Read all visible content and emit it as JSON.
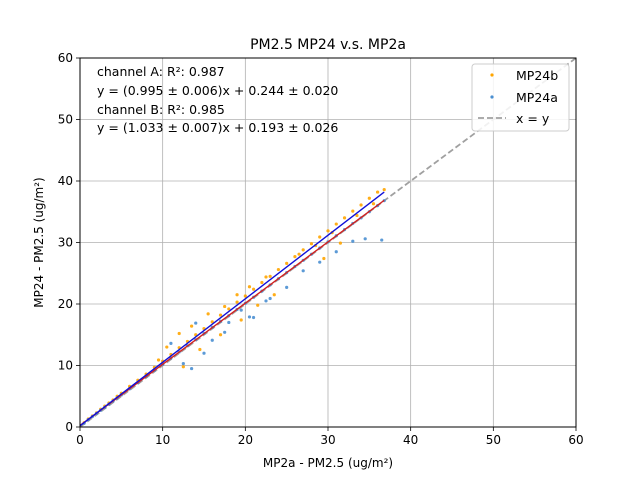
{
  "chart_data": {
    "type": "scatter",
    "title": "PM2.5 MP24 v.s. MP2a",
    "xlabel": "MP2a - PM2.5 (ug/m²)",
    "ylabel": "MP24 - PM2.5 (ug/m²)",
    "xlim": [
      0,
      60
    ],
    "ylim": [
      0,
      60
    ],
    "xticks": [
      "0",
      "10",
      "20",
      "30",
      "40",
      "50",
      "60"
    ],
    "yticks": [
      "0",
      "10",
      "20",
      "30",
      "40",
      "50",
      "60"
    ],
    "grid": true,
    "legend_position": "top-right",
    "annotations": [
      "channel A: R²: 0.987",
      "y = (0.995 ± 0.006)x + 0.244 ± 0.020",
      "channel B: R²: 0.985",
      "y = (1.033 ± 0.007)x + 0.193 ± 0.026"
    ],
    "series": [
      {
        "name": "MP24b",
        "color": "#ffa500",
        "x": [
          0.5,
          1.0,
          1.5,
          2.0,
          2.5,
          3.0,
          3.5,
          4.0,
          4.5,
          5.0,
          6.0,
          7.0,
          8.0,
          9.0,
          10.0,
          11.0,
          12.0,
          13.0,
          14.0,
          15.0,
          16.0,
          17.0,
          18.0,
          19.0,
          20.0,
          21.0,
          22.0,
          23.0,
          24.0,
          25.0,
          26.0,
          27.0,
          28.0,
          29.0,
          30.0,
          31.0,
          32.0,
          33.0,
          34.0,
          35.0,
          36.0,
          36.8,
          10.5,
          12.0,
          13.5,
          15.5,
          17.5,
          19.0,
          20.5,
          22.5,
          26.5,
          28.5,
          30.5,
          33.5,
          35.5,
          9.5,
          12.5,
          14.5,
          17.0,
          19.5,
          21.5,
          23.5,
          29.5,
          31.5
        ],
        "y": [
          0.7,
          1.3,
          1.8,
          2.3,
          2.9,
          3.4,
          3.9,
          4.4,
          5.0,
          5.5,
          6.6,
          7.6,
          8.6,
          9.7,
          10.7,
          11.8,
          12.9,
          13.9,
          15.0,
          16.0,
          17.1,
          18.2,
          19.2,
          20.3,
          21.3,
          22.4,
          23.5,
          24.5,
          25.6,
          26.6,
          27.7,
          28.8,
          29.8,
          30.9,
          31.9,
          33.0,
          34.0,
          35.1,
          36.1,
          37.2,
          38.2,
          38.6,
          13.0,
          15.2,
          16.4,
          18.4,
          19.6,
          21.5,
          22.8,
          24.4,
          28.1,
          29.5,
          31.6,
          34.4,
          36.3,
          10.9,
          9.8,
          12.6,
          15.0,
          17.4,
          19.8,
          21.5,
          27.4,
          29.9
        ]
      },
      {
        "name": "MP24a",
        "color": "#4a8fd1",
        "x": [
          0.5,
          1.0,
          1.5,
          2.0,
          2.5,
          3.0,
          3.5,
          4.0,
          4.5,
          5.0,
          6.0,
          7.0,
          8.0,
          9.0,
          10.0,
          11.0,
          12.0,
          13.0,
          14.0,
          15.0,
          16.0,
          17.0,
          18.0,
          19.0,
          20.0,
          21.0,
          22.0,
          23.0,
          24.0,
          25.0,
          26.0,
          27.0,
          28.0,
          29.0,
          30.0,
          31.0,
          32.0,
          33.0,
          34.0,
          35.0,
          36.0,
          36.8,
          11.0,
          12.5,
          14.0,
          16.0,
          18.0,
          19.5,
          21.0,
          23.0,
          25.0,
          27.0,
          29.0,
          31.0,
          33.0,
          34.5,
          36.5,
          13.5,
          15.0,
          17.5,
          20.5,
          22.5
        ],
        "y": [
          0.6,
          1.2,
          1.7,
          2.2,
          2.7,
          3.2,
          3.7,
          4.2,
          4.7,
          5.2,
          6.2,
          7.2,
          8.2,
          9.2,
          10.2,
          11.2,
          12.2,
          13.2,
          14.2,
          15.2,
          16.2,
          17.2,
          18.1,
          19.1,
          20.1,
          21.1,
          22.1,
          23.1,
          24.1,
          25.1,
          26.1,
          27.1,
          28.1,
          29.1,
          30.1,
          31.1,
          32.1,
          33.1,
          34.0,
          35.0,
          36.0,
          36.8,
          13.6,
          10.3,
          16.9,
          14.1,
          17.0,
          19.0,
          17.8,
          20.9,
          22.7,
          25.4,
          26.8,
          28.5,
          30.2,
          30.6,
          30.4,
          9.5,
          12.0,
          15.4,
          17.9,
          20.5
        ]
      }
    ],
    "fit_lines": [
      {
        "label": "channel A fit",
        "color": "#d02020",
        "slope": 0.995,
        "intercept": 0.244,
        "x_range": [
          0,
          36.8
        ]
      },
      {
        "label": "channel B fit",
        "color": "#1010d8",
        "slope": 1.033,
        "intercept": 0.193,
        "x_range": [
          0,
          36.8
        ]
      }
    ],
    "reference_line": {
      "name": "x = y",
      "color": "#a0a0a0",
      "dashed": true
    }
  }
}
